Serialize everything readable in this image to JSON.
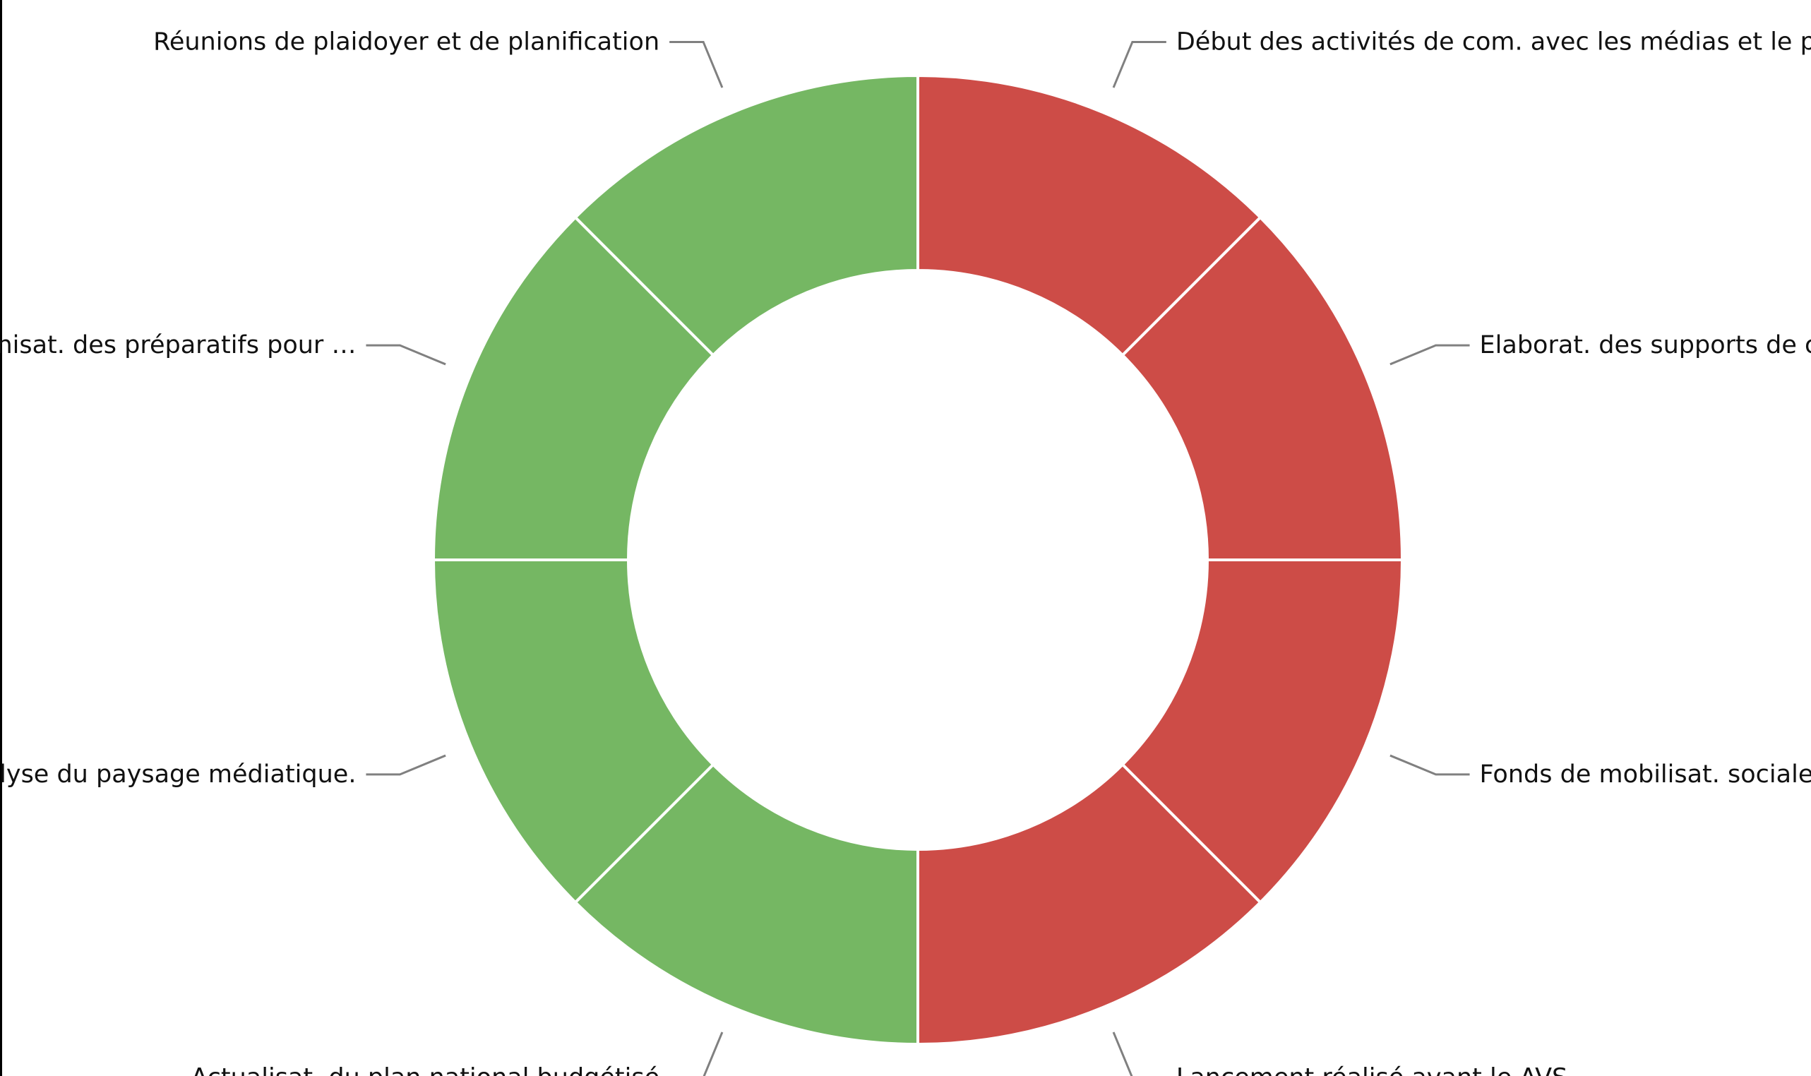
{
  "chart_data": {
    "type": "pie",
    "variant": "donut",
    "legend": "none",
    "categories": [
      "Début des activités de com. avec les médias et le public",
      "Elaborat. des supports de com…",
      "Fonds de mobilisat. sociale et d…",
      "Lancement réalisé avant le AVS",
      "Actualisat. du plan national budgétisé",
      "Analyse du paysage médiatique.",
      "Organisat. des préparatifs pour …",
      "Réunions de plaidoyer et de planification"
    ],
    "values": [
      1,
      1,
      1,
      1,
      1,
      1,
      1,
      1
    ],
    "slice_colors": [
      "#cd4c47",
      "#cd4c47",
      "#cd4c47",
      "#cd4c47",
      "#75b763",
      "#75b763",
      "#75b763",
      "#75b763"
    ]
  }
}
